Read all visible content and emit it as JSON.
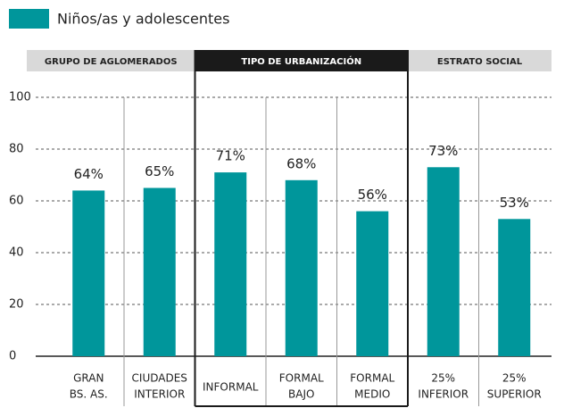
{
  "chart_data": {
    "type": "bar",
    "legend": "Niños/as y adolescentes",
    "groups": [
      "GRUPO DE AGLOMERADOS",
      "TIPO DE URBANIZACIÓN",
      "ESTRATO SOCIAL"
    ],
    "categories": [
      [
        "GRAN",
        "BS. AS."
      ],
      [
        "CIUDADES",
        "INTERIOR"
      ],
      [
        "INFORMAL"
      ],
      [
        "FORMAL",
        "BAJO"
      ],
      [
        "FORMAL",
        "MEDIO"
      ],
      [
        "25%",
        "INFERIOR"
      ],
      [
        "25%",
        "SUPERIOR"
      ]
    ],
    "values": [
      64,
      65,
      71,
      68,
      56,
      73,
      53
    ],
    "value_labels": [
      "64%",
      "65%",
      "71%",
      "68%",
      "56%",
      "73%",
      "53%"
    ],
    "color": "#00969b",
    "ylim": [
      0,
      100
    ],
    "yticks": [
      0,
      20,
      40,
      60,
      80,
      100
    ],
    "grid": true
  }
}
